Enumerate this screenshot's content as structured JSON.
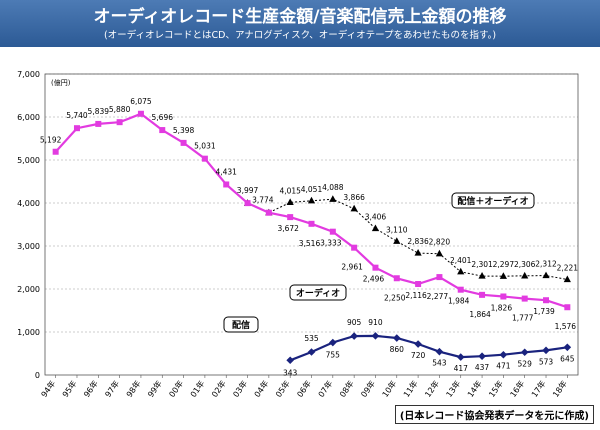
{
  "header": {
    "title": "オーディオレコード生産金額/音楽配信売上金額の推移",
    "subtitle": "(オーディオレコードとはCD、アナログディスク、オーディオテープをあわせたものを指す。)"
  },
  "source": "(日本レコード協会発表データを元に作成)",
  "chart_data": {
    "type": "line",
    "title": "オーディオレコード生産金額/音楽配信売上金額の推移",
    "ylabel": "(億円)",
    "ylim": [
      0,
      7000
    ],
    "yticks": [
      "0",
      "1,000",
      "2,000",
      "3,000",
      "4,000",
      "5,000",
      "6,000",
      "7,000"
    ],
    "categories": [
      "94年",
      "95年",
      "96年",
      "97年",
      "98年",
      "99年",
      "00年",
      "01年",
      "02年",
      "03年",
      "04年",
      "05年",
      "06年",
      "07年",
      "08年",
      "09年",
      "10年",
      "11年",
      "12年",
      "13年",
      "14年",
      "15年",
      "16年",
      "17年",
      "18年"
    ],
    "series": [
      {
        "name": "配信＋オーディオ",
        "color": "#000000",
        "marker": "triangle",
        "dashed": true,
        "values": [
          null,
          null,
          null,
          null,
          null,
          null,
          null,
          null,
          null,
          3997,
          3774,
          4015,
          4051,
          4088,
          3866,
          3406,
          3110,
          2836,
          2820,
          2401,
          2301,
          2297,
          2306,
          2312,
          2221
        ],
        "labels": [
          "",
          "",
          "",
          "",
          "",
          "",
          "",
          "",
          "",
          "",
          "",
          "4,015",
          "4,051",
          "4,088",
          "3,866",
          "3,406",
          "3,110",
          "2,836",
          "2,820",
          "2,401",
          "2,301",
          "2,297",
          "2,306",
          "2,312",
          "2,221"
        ]
      },
      {
        "name": "オーディオ",
        "color": "#e23be0",
        "marker": "square",
        "dashed": false,
        "values": [
          5192,
          5740,
          5839,
          5880,
          6075,
          5696,
          5398,
          5031,
          4431,
          3997,
          3774,
          3672,
          3516,
          3333,
          2961,
          2496,
          2250,
          2116,
          2277,
          1984,
          1864,
          1826,
          1777,
          1739,
          1576
        ],
        "labels": [
          "5,192",
          "5,740",
          "5,839",
          "5,880",
          "6,075",
          "5,696",
          "5,398",
          "5,031",
          "4,431",
          "3,997",
          "3,774",
          "3,672",
          "3,516",
          "3,333",
          "2,961",
          "2,496",
          "2,250",
          "2,116",
          "2,277",
          "1,984",
          "1,864",
          "1,826",
          "1,777",
          "1,739",
          "1,576"
        ]
      },
      {
        "name": "配信",
        "color": "#1a237e",
        "marker": "diamond",
        "dashed": false,
        "values": [
          null,
          null,
          null,
          null,
          null,
          null,
          null,
          null,
          null,
          null,
          null,
          343,
          535,
          755,
          905,
          910,
          860,
          720,
          543,
          417,
          437,
          471,
          529,
          573,
          645
        ],
        "labels": [
          "",
          "",
          "",
          "",
          "",
          "",
          "",
          "",
          "",
          "",
          "",
          "343",
          "535",
          "755",
          "905",
          "910",
          "860",
          "720",
          "543",
          "417",
          "437",
          "471",
          "529",
          "573",
          "645"
        ]
      }
    ],
    "legend_boxes": [
      "配信＋オーディオ",
      "オーディオ",
      "配信"
    ],
    "grid": true
  }
}
